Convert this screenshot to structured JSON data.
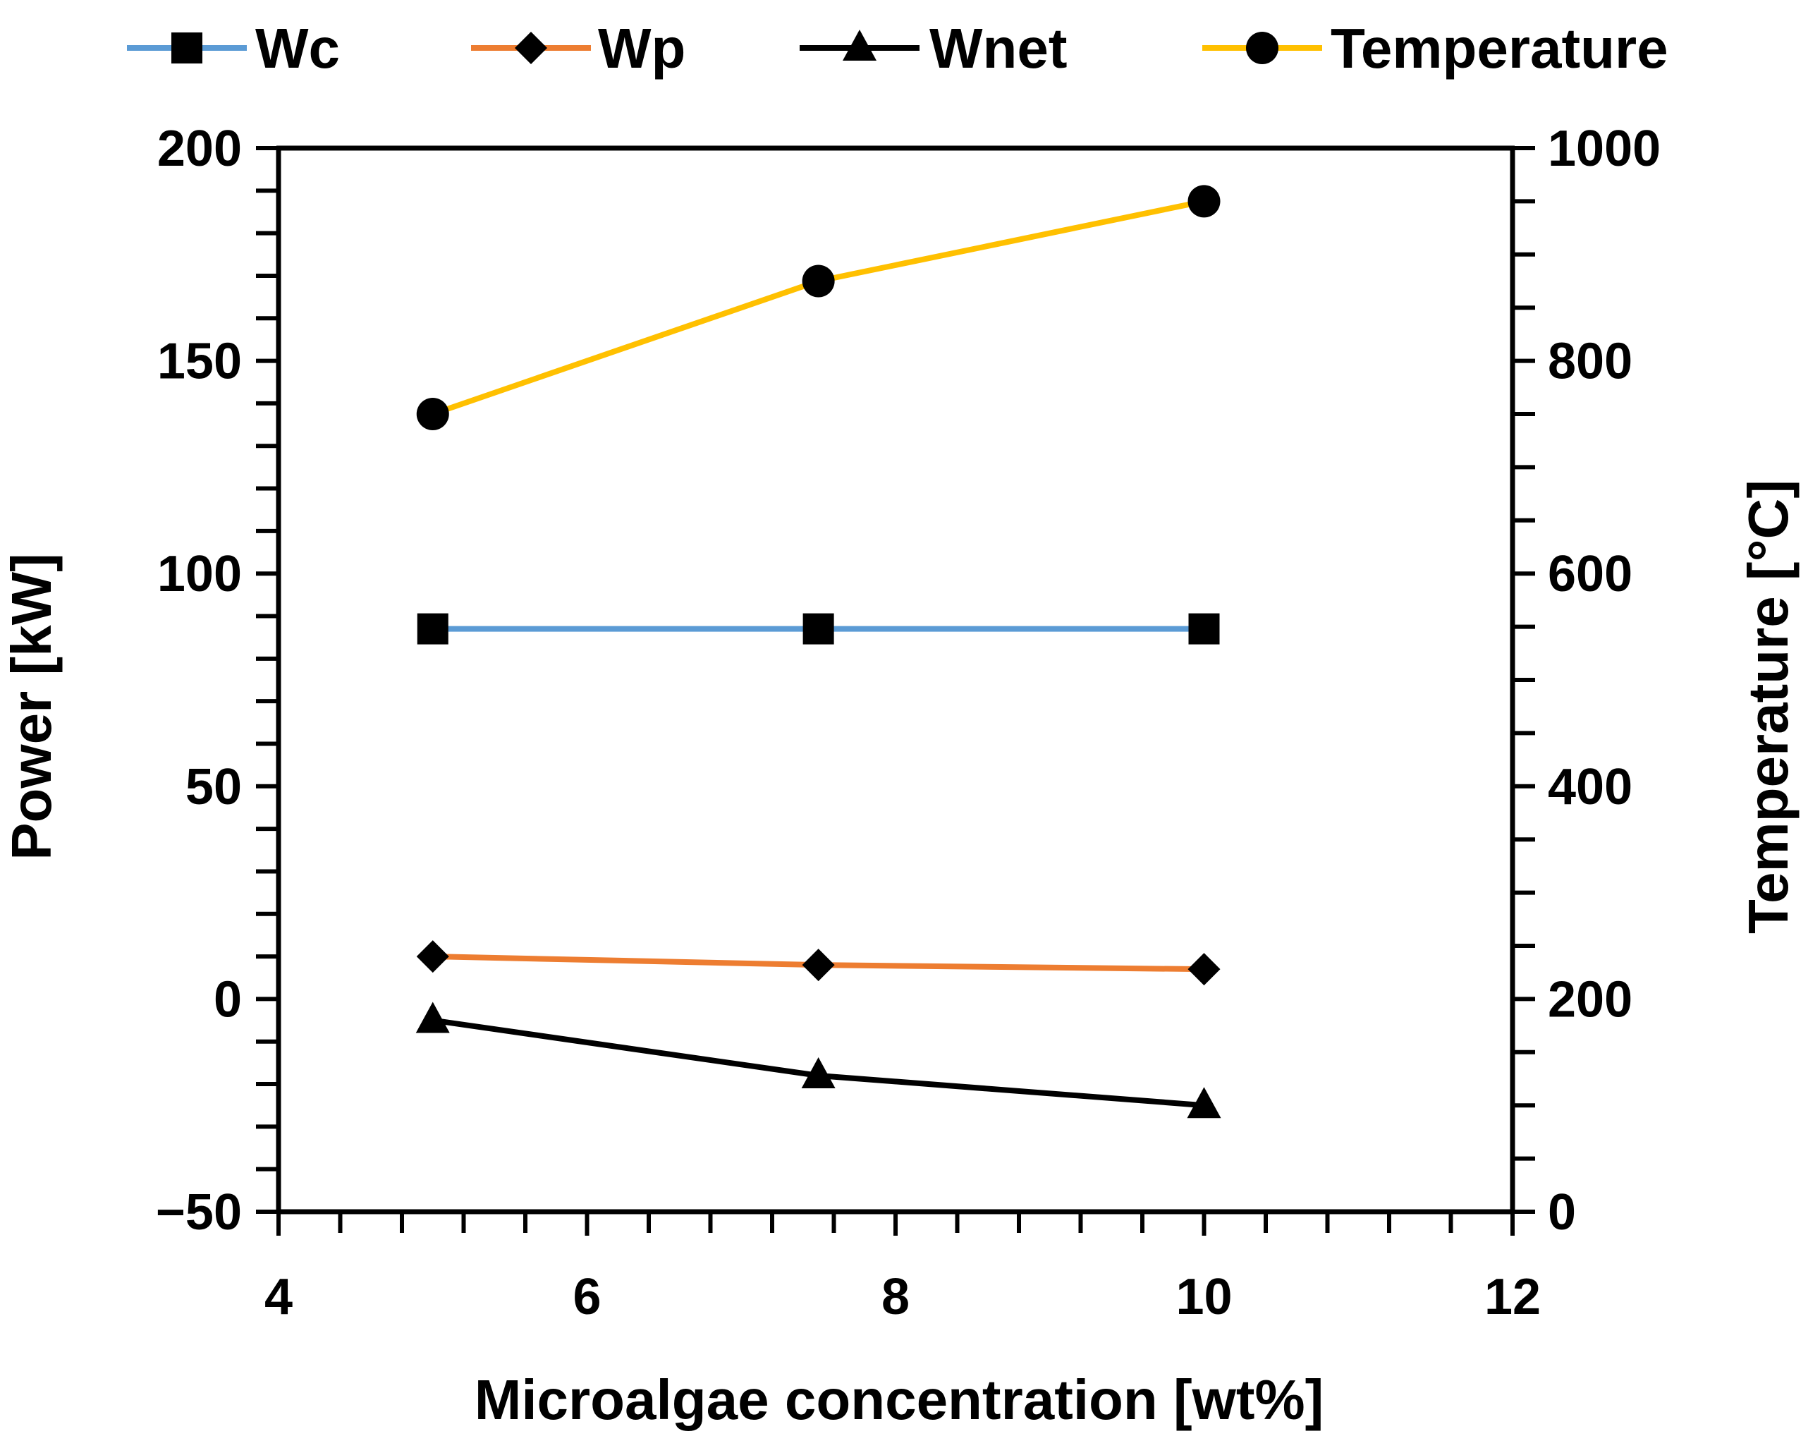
{
  "chart_data": {
    "type": "line",
    "title": "",
    "xlabel": "Microalgae concentration [wt%]",
    "ylabel": "Power [kW]",
    "y2label": "Temperature [°C]",
    "xlim": [
      4,
      12
    ],
    "ylim": [
      -50,
      200
    ],
    "y2lim": [
      0,
      1000
    ],
    "xticks": [
      "4",
      "6",
      "8",
      "10",
      "12"
    ],
    "yticks": [
      "−50",
      "0",
      "50",
      "100",
      "150",
      "200"
    ],
    "y2ticks": [
      "0",
      "200",
      "400",
      "600",
      "800",
      "1000"
    ],
    "grid": false,
    "legend_position": "top",
    "series": [
      {
        "name": "Wc",
        "axis": "left",
        "color": "#5B9BD5",
        "marker": "square",
        "x": [
          5,
          7.5,
          10
        ],
        "values": [
          87,
          87,
          87
        ]
      },
      {
        "name": "Wp",
        "axis": "left",
        "color": "#ED7D31",
        "marker": "diamond",
        "x": [
          5,
          7.5,
          10
        ],
        "values": [
          10,
          8,
          7
        ]
      },
      {
        "name": "Wnet",
        "axis": "left",
        "color": "#000000",
        "marker": "triangle",
        "x": [
          5,
          7.5,
          10
        ],
        "values": [
          -5,
          -18,
          -25
        ]
      },
      {
        "name": "Temperature",
        "axis": "right",
        "color": "#FFC000",
        "marker": "circle",
        "x": [
          5,
          7.5,
          10
        ],
        "values": [
          750,
          875,
          950
        ]
      }
    ]
  }
}
